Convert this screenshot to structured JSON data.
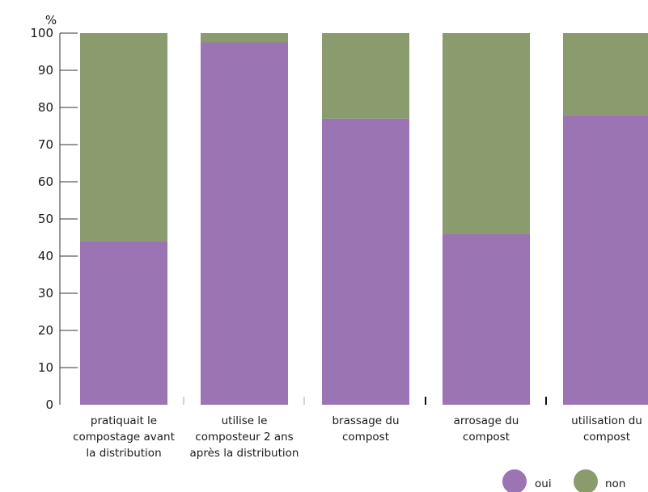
{
  "chart_data": {
    "type": "bar",
    "stacked": true,
    "ylabel": "%",
    "ylim": [
      0,
      100
    ],
    "yticks": [
      0,
      10,
      20,
      30,
      40,
      50,
      60,
      70,
      80,
      90,
      100
    ],
    "categories": [
      [
        "pratiquait le",
        "compostage avant",
        "la distribution"
      ],
      [
        "utilise le",
        "composteur 2 ans",
        "après la distribution"
      ],
      [
        "brassage du",
        "compost"
      ],
      [
        "arrosage du",
        "compost"
      ],
      [
        "utilisation du",
        "compost"
      ]
    ],
    "series": [
      {
        "name": "oui",
        "color": "#9b74b3",
        "values": [
          44,
          97.5,
          77,
          46,
          78
        ]
      },
      {
        "name": "non",
        "color": "#8a9b6e",
        "values": [
          56,
          2.5,
          23,
          54,
          22
        ]
      }
    ],
    "legend_position": "bottom-right",
    "grid": false
  }
}
